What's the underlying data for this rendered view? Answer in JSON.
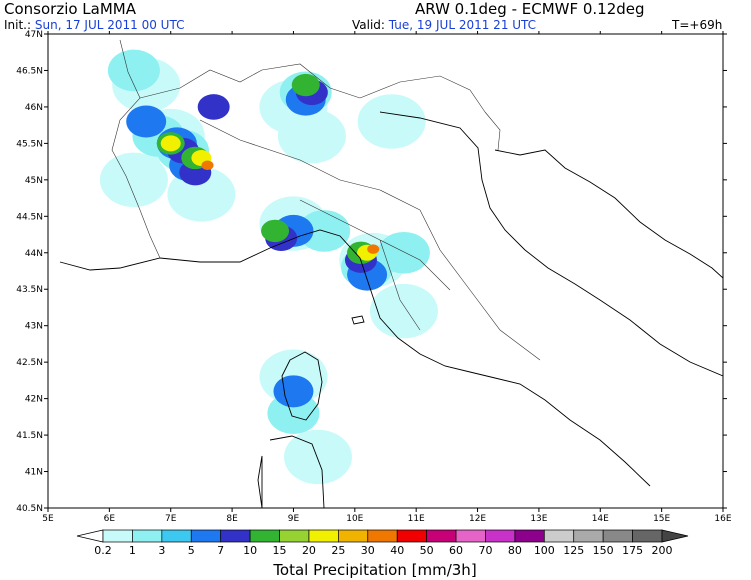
{
  "header": {
    "org": "Consorzio LaMMA",
    "model": "ARW 0.1deg - ECMWF 0.12deg",
    "init_label": "Init.:",
    "init_value": "Sun, 17 JUL 2011  00 UTC",
    "valid_label": "Valid:",
    "valid_value": "Tue, 19 JUL 2011  21 UTC",
    "forecast_step": "T=+69h"
  },
  "map": {
    "lat_ticks": [
      "47N",
      "46.5N",
      "46N",
      "45.5N",
      "45N",
      "44.5N",
      "44N",
      "43.5N",
      "43N",
      "42.5N",
      "42N",
      "41.5N",
      "41N",
      "40.5N"
    ],
    "lon_ticks": [
      "5E",
      "6E",
      "7E",
      "8E",
      "9E",
      "10E",
      "11E",
      "12E",
      "13E",
      "14E",
      "15E",
      "16E"
    ],
    "lon_range": [
      5,
      16
    ],
    "lat_range": [
      40.5,
      47
    ]
  },
  "legend": {
    "title": "Total Precipitation [mm/3h]",
    "levels": [
      "0.2",
      "1",
      "3",
      "5",
      "7",
      "10",
      "15",
      "20",
      "25",
      "30",
      "40",
      "50",
      "60",
      "70",
      "80",
      "100",
      "125",
      "150",
      "175",
      "200"
    ],
    "colors": [
      "#ffffff",
      "#c8fafa",
      "#8ef0f0",
      "#3cc8f0",
      "#1e78f0",
      "#3232c8",
      "#32b432",
      "#96d232",
      "#f0f000",
      "#f0b400",
      "#f07800",
      "#f00000",
      "#c80078",
      "#e664c8",
      "#c832c8",
      "#8c008c",
      "#cccccc",
      "#aaaaaa",
      "#888888",
      "#666666",
      "#444444"
    ]
  },
  "precip_cells": [
    {
      "lon": 6.6,
      "lat": 46.3,
      "level": 1
    },
    {
      "lon": 7.0,
      "lat": 45.6,
      "level": 1
    },
    {
      "lon": 6.4,
      "lat": 45.0,
      "level": 1
    },
    {
      "lon": 7.5,
      "lat": 44.8,
      "level": 1
    },
    {
      "lon": 9.3,
      "lat": 45.6,
      "level": 1
    },
    {
      "lon": 9.0,
      "lat": 44.4,
      "level": 1
    },
    {
      "lon": 10.3,
      "lat": 43.9,
      "level": 1
    },
    {
      "lon": 10.8,
      "lat": 43.2,
      "level": 1
    },
    {
      "lon": 9.0,
      "lat": 42.3,
      "level": 1
    },
    {
      "lon": 9.4,
      "lat": 41.2,
      "level": 1
    },
    {
      "lon": 9.0,
      "lat": 46.0,
      "level": 1
    },
    {
      "lon": 10.6,
      "lat": 45.8,
      "level": 1
    },
    {
      "lon": 6.8,
      "lat": 45.6,
      "level": 2
    },
    {
      "lon": 7.2,
      "lat": 45.4,
      "level": 2
    },
    {
      "lon": 9.5,
      "lat": 44.3,
      "level": 2
    },
    {
      "lon": 10.2,
      "lat": 43.8,
      "level": 2
    },
    {
      "lon": 9.0,
      "lat": 41.8,
      "level": 2
    },
    {
      "lon": 9.2,
      "lat": 46.2,
      "level": 2
    },
    {
      "lon": 6.4,
      "lat": 46.5,
      "level": 2
    },
    {
      "lon": 10.8,
      "lat": 44.0,
      "level": 2
    },
    {
      "lon": 7.1,
      "lat": 45.5,
      "level": 4
    },
    {
      "lon": 7.3,
      "lat": 45.2,
      "level": 4
    },
    {
      "lon": 9.0,
      "lat": 44.3,
      "level": 4
    },
    {
      "lon": 10.2,
      "lat": 43.7,
      "level": 4
    },
    {
      "lon": 9.2,
      "lat": 46.1,
      "level": 4
    },
    {
      "lon": 9.0,
      "lat": 42.1,
      "level": 4
    },
    {
      "lon": 6.6,
      "lat": 45.8,
      "level": 4
    },
    {
      "lon": 7.2,
      "lat": 45.4,
      "level": 5
    },
    {
      "lon": 7.4,
      "lat": 45.1,
      "level": 5
    },
    {
      "lon": 8.8,
      "lat": 44.2,
      "level": 5
    },
    {
      "lon": 10.1,
      "lat": 43.9,
      "level": 5
    },
    {
      "lon": 9.3,
      "lat": 46.2,
      "level": 5
    },
    {
      "lon": 7.7,
      "lat": 46.0,
      "level": 5
    },
    {
      "lon": 7.4,
      "lat": 45.3,
      "level": 6
    },
    {
      "lon": 7.0,
      "lat": 45.5,
      "level": 6
    },
    {
      "lon": 8.7,
      "lat": 44.3,
      "level": 6
    },
    {
      "lon": 10.1,
      "lat": 44.0,
      "level": 6
    },
    {
      "lon": 9.2,
      "lat": 46.3,
      "level": 6
    },
    {
      "lon": 7.0,
      "lat": 45.5,
      "level": 8
    },
    {
      "lon": 7.5,
      "lat": 45.3,
      "level": 8
    },
    {
      "lon": 10.2,
      "lat": 44.0,
      "level": 8
    },
    {
      "lon": 7.6,
      "lat": 45.2,
      "level": 10
    },
    {
      "lon": 10.3,
      "lat": 44.05,
      "level": 10
    }
  ]
}
